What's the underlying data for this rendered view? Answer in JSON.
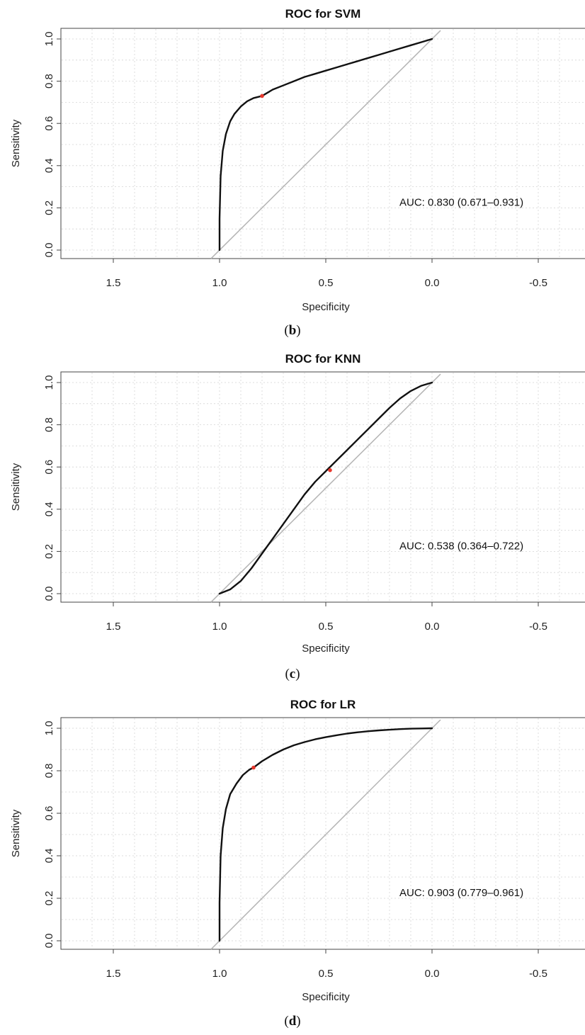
{
  "chart_data": [
    {
      "type": "line",
      "title": "ROC for SVM",
      "xlabel": "Specificity",
      "ylabel": "Sensitivity",
      "xlim": [
        1.7,
        -0.7
      ],
      "ylim": [
        0,
        1
      ],
      "x_reversed": true,
      "xticks": [
        "1.5",
        "1.0",
        "0.5",
        "0.0",
        "-0.5"
      ],
      "yticks": [
        "0.0",
        "0.2",
        "0.4",
        "0.6",
        "0.8",
        "1.0"
      ],
      "grid": true,
      "series": [
        {
          "specificity": [
            1.0,
            1.0,
            0.995,
            0.985,
            0.97,
            0.95,
            0.93,
            0.9,
            0.87,
            0.84,
            0.8,
            0.75,
            0.7,
            0.65,
            0.6,
            0.55,
            0.5,
            0.45,
            0.4,
            0.35,
            0.3,
            0.25,
            0.2,
            0.15,
            0.1,
            0.05,
            0.0
          ],
          "sensitivity": [
            0.0,
            0.15,
            0.35,
            0.47,
            0.55,
            0.61,
            0.645,
            0.68,
            0.705,
            0.72,
            0.73,
            0.76,
            0.78,
            0.8,
            0.82,
            0.835,
            0.85,
            0.865,
            0.88,
            0.895,
            0.91,
            0.925,
            0.94,
            0.955,
            0.97,
            0.985,
            1.0
          ]
        }
      ],
      "reference_line": {
        "specificity": [
          1.0,
          0.0
        ],
        "sensitivity": [
          0.0,
          1.0
        ]
      },
      "threshold_point": {
        "specificity": 0.8,
        "sensitivity": 0.73
      },
      "annotation": "AUC: 0.830 (0.671–0.931)",
      "caption_letter": "b",
      "colors": {
        "curve": "#111111",
        "diagonal": "#b4b4b4",
        "point": "#e8372c",
        "grid": "#d4d4d4"
      }
    },
    {
      "type": "line",
      "title": "ROC for KNN",
      "xlabel": "Specificity",
      "ylabel": "Sensitivity",
      "xlim": [
        1.7,
        -0.7
      ],
      "ylim": [
        0,
        1
      ],
      "x_reversed": true,
      "xticks": [
        "1.5",
        "1.0",
        "0.5",
        "0.0",
        "-0.5"
      ],
      "yticks": [
        "0.0",
        "0.2",
        "0.4",
        "0.6",
        "0.8",
        "1.0"
      ],
      "grid": true,
      "series": [
        {
          "specificity": [
            1.0,
            0.95,
            0.9,
            0.85,
            0.8,
            0.75,
            0.7,
            0.65,
            0.6,
            0.55,
            0.5,
            0.45,
            0.4,
            0.35,
            0.3,
            0.25,
            0.2,
            0.15,
            0.1,
            0.05,
            0.0
          ],
          "sensitivity": [
            0.0,
            0.02,
            0.06,
            0.12,
            0.19,
            0.26,
            0.33,
            0.4,
            0.47,
            0.53,
            0.58,
            0.63,
            0.68,
            0.73,
            0.78,
            0.83,
            0.88,
            0.925,
            0.96,
            0.985,
            1.0
          ]
        }
      ],
      "reference_line": {
        "specificity": [
          1.0,
          0.0
        ],
        "sensitivity": [
          0.0,
          1.0
        ]
      },
      "threshold_point": {
        "specificity": 0.48,
        "sensitivity": 0.585
      },
      "annotation": "AUC: 0.538 (0.364–0.722)",
      "caption_letter": "c",
      "colors": {
        "curve": "#111111",
        "diagonal": "#b4b4b4",
        "point": "#e8372c",
        "grid": "#d4d4d4"
      }
    },
    {
      "type": "line",
      "title": "ROC for LR",
      "xlabel": "Specificity",
      "ylabel": "Sensitivity",
      "xlim": [
        1.7,
        -0.7
      ],
      "ylim": [
        0,
        1
      ],
      "x_reversed": true,
      "xticks": [
        "1.5",
        "1.0",
        "0.5",
        "0.0",
        "-0.5"
      ],
      "yticks": [
        "0.0",
        "0.2",
        "0.4",
        "0.6",
        "0.8",
        "1.0"
      ],
      "grid": true,
      "series": [
        {
          "specificity": [
            1.0,
            1.0,
            0.995,
            0.985,
            0.97,
            0.95,
            0.92,
            0.89,
            0.86,
            0.84,
            0.8,
            0.75,
            0.7,
            0.65,
            0.6,
            0.55,
            0.5,
            0.45,
            0.4,
            0.35,
            0.3,
            0.25,
            0.2,
            0.15,
            0.1,
            0.05,
            0.0
          ],
          "sensitivity": [
            0.0,
            0.18,
            0.4,
            0.53,
            0.62,
            0.69,
            0.74,
            0.78,
            0.805,
            0.815,
            0.845,
            0.875,
            0.9,
            0.92,
            0.935,
            0.948,
            0.958,
            0.967,
            0.975,
            0.981,
            0.986,
            0.99,
            0.993,
            0.996,
            0.998,
            0.999,
            1.0
          ]
        }
      ],
      "reference_line": {
        "specificity": [
          1.0,
          0.0
        ],
        "sensitivity": [
          0.0,
          1.0
        ]
      },
      "threshold_point": {
        "specificity": 0.84,
        "sensitivity": 0.815
      },
      "annotation": "AUC: 0.903 (0.779–0.961)",
      "caption_letter": "d",
      "colors": {
        "curve": "#111111",
        "diagonal": "#b4b4b4",
        "point": "#e8372c",
        "grid": "#d4d4d4"
      }
    }
  ]
}
